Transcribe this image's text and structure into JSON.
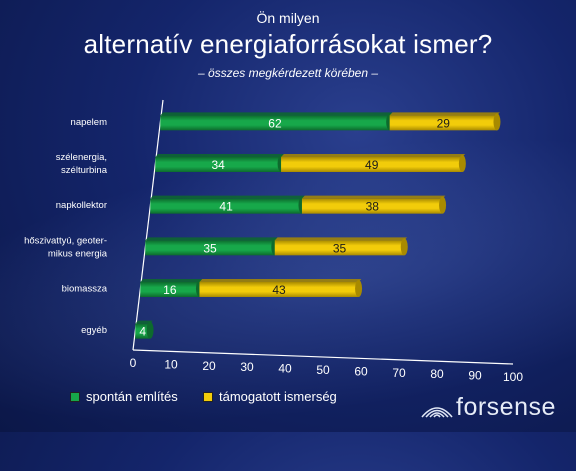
{
  "title_line1": "Ön milyen",
  "title_line2": "alternatív energiaforrásokat  ismer?",
  "subtitle": "– összes megkérdezett körében –",
  "legend": {
    "green": "spontán említés",
    "yellow": "támogatott ismerség"
  },
  "logo_text": "forsense",
  "colors": {
    "green": "#17a84a",
    "green_dark": "#0d6a2d",
    "yellow": "#f2cc0a",
    "yellow_dark": "#a88a00",
    "axis": "#ffffff"
  },
  "chart_data": {
    "type": "bar",
    "orientation": "horizontal",
    "stacked": true,
    "title": "alternatív energiaforrásokat  ismer?",
    "categories": [
      [
        "napelem"
      ],
      [
        "szélenergia,",
        "szélturbina"
      ],
      [
        "napkollektor"
      ],
      [
        "hőszivattyú, geoter-",
        "mikus energia"
      ],
      [
        "biomassza"
      ],
      [
        "egyéb"
      ]
    ],
    "series": [
      {
        "name": "spontán említés",
        "values": [
          62,
          34,
          41,
          35,
          16,
          4
        ]
      },
      {
        "name": "támogatott ismerség",
        "values": [
          29,
          49,
          38,
          35,
          43,
          0
        ]
      }
    ],
    "x_ticks": [
      0,
      10,
      20,
      30,
      40,
      50,
      60,
      70,
      80,
      90,
      100
    ],
    "xlim": [
      0,
      100
    ],
    "legend_position": "bottom-left",
    "grid": false
  }
}
